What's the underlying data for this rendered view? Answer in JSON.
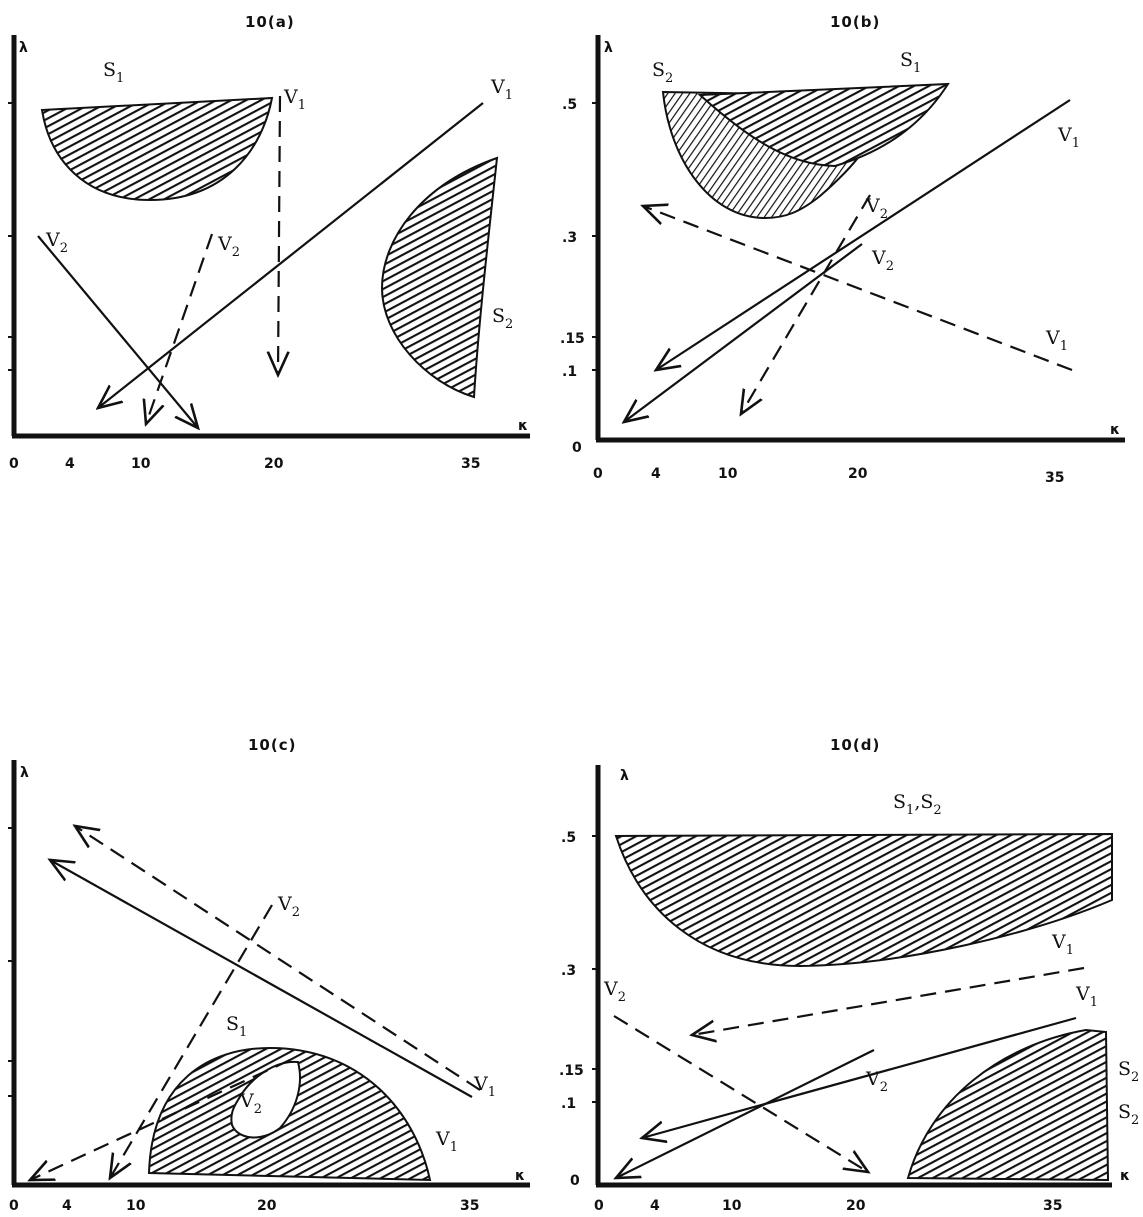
{
  "panels": [
    {
      "title": "10(a)",
      "y_axis_label": "λ",
      "x_axis_label": "κ",
      "x_ticks": [
        "0",
        "4",
        "10",
        "20",
        "35"
      ],
      "y_ticks": [],
      "labels": {
        "s1": "S",
        "s1_sub": "1",
        "s2": "S",
        "s2_sub": "2",
        "v1a": "V",
        "v1a_sub": "1",
        "v1b": "V",
        "v1b_sub": "1",
        "v2a": "V",
        "v2a_sub": "2",
        "v2b": "V",
        "v2b_sub": "2"
      }
    },
    {
      "title": "10(b)",
      "y_axis_label": "λ",
      "x_axis_label": "κ",
      "x_ticks": [
        "0",
        "4",
        "10",
        "20",
        "35"
      ],
      "y_ticks": [
        ".5",
        ".3",
        ".15",
        ".1",
        "0"
      ],
      "labels": {
        "s1": "S",
        "s1_sub": "1",
        "s2": "S",
        "s2_sub": "2",
        "v1a": "V",
        "v1a_sub": "1",
        "v1b": "V",
        "v1b_sub": "1",
        "v2a": "V",
        "v2a_sub": "2",
        "v2b": "V",
        "v2b_sub": "2"
      }
    },
    {
      "title": "10(c)",
      "y_axis_label": "λ",
      "x_axis_label": "κ",
      "x_ticks": [
        "0",
        "4",
        "10",
        "20",
        "35"
      ],
      "y_ticks": [],
      "labels": {
        "s1": "S",
        "s1_sub": "1",
        "v1a": "V",
        "v1a_sub": "1",
        "v1b": "V",
        "v1b_sub": "1",
        "v2a": "V",
        "v2a_sub": "2",
        "v2b": "V",
        "v2b_sub": "2"
      }
    },
    {
      "title": "10(d)",
      "y_axis_label": "λ",
      "x_axis_label": "κ",
      "x_ticks": [
        "0",
        "4",
        "10",
        "20",
        "35"
      ],
      "y_ticks": [
        ".5",
        ".3",
        ".15",
        ".1",
        "0"
      ],
      "labels": {
        "s12": "S",
        "s12_sub1": "1",
        "s12_comma": ",",
        "s12_s2": "S",
        "s12_sub2": "2",
        "s2a": "S",
        "s2a_sub": "2",
        "s2b": "S",
        "s2b_sub": "2",
        "v1a": "V",
        "v1a_sub": "1",
        "v1b": "V",
        "v1b_sub": "1",
        "v2a": "V",
        "v2a_sub": "2",
        "v2b": "V",
        "v2b_sub": "2"
      }
    }
  ]
}
